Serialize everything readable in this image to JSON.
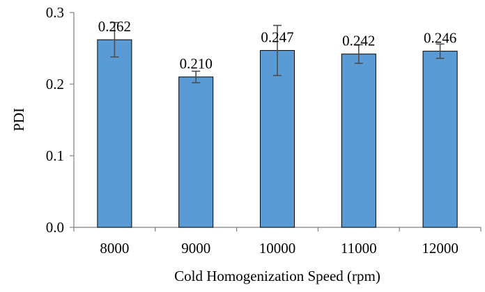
{
  "chart_data": {
    "type": "bar",
    "categories": [
      "8000",
      "9000",
      "10000",
      "11000",
      "12000"
    ],
    "values": [
      0.262,
      0.21,
      0.247,
      0.242,
      0.246
    ],
    "value_labels": [
      "0.262",
      "0.210",
      "0.247",
      "0.242",
      "0.246"
    ],
    "error": [
      0.024,
      0.008,
      0.035,
      0.013,
      0.01
    ],
    "xlabel": "Cold Homogenization Speed (rpm)",
    "ylabel": "PDI",
    "ylim": [
      0,
      0.3
    ],
    "yticks": [
      0.0,
      0.1,
      0.2,
      0.3
    ],
    "ytick_labels": [
      "0.0",
      "0.1",
      "0.2",
      "0.3"
    ],
    "grid": false,
    "legend": "none",
    "colors": {
      "bar_fill": "#5b9bd5",
      "bar_stroke": "#000000",
      "axis": "#7f7f7f",
      "error_bar": "#4d4d4d"
    }
  }
}
